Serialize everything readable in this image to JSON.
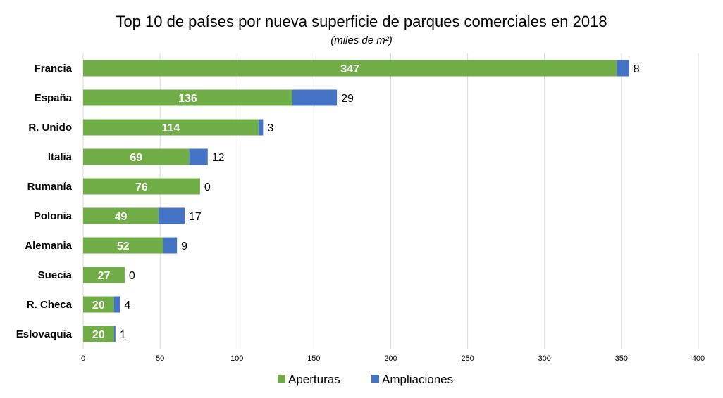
{
  "chart_data": {
    "type": "bar",
    "orientation": "horizontal",
    "stacked": true,
    "title": "Top 10 de países por nueva superficie de parques comerciales en 2018",
    "subtitle": "(miles de m²)",
    "categories": [
      "Francia",
      "España",
      "R. Unido",
      "Italia",
      "Rumanía",
      "Polonia",
      "Alemania",
      "Suecia",
      "R. Checa",
      "Eslovaquia"
    ],
    "series": [
      {
        "name": "Aperturas",
        "color": "#70ad47",
        "values": [
          347,
          136,
          114,
          69,
          76,
          49,
          52,
          27,
          20,
          20
        ]
      },
      {
        "name": "Ampliaciones",
        "color": "#4472c4",
        "values": [
          8,
          29,
          3,
          12,
          0,
          17,
          9,
          0,
          4,
          1
        ]
      }
    ],
    "xlim": [
      0,
      400
    ],
    "xticks": [
      "0",
      "50",
      "100",
      "150",
      "200",
      "250",
      "300",
      "350",
      "400"
    ],
    "grid": "vertical",
    "legend": "bottom"
  }
}
